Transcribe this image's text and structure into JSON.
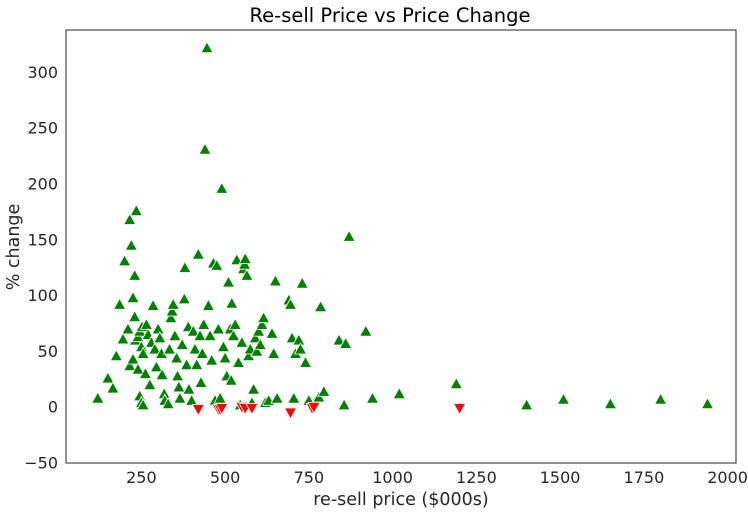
{
  "chart_data": {
    "type": "scatter",
    "title": "Re-sell Price vs Price Change",
    "xlabel": "re-sell price ($000s)",
    "ylabel": "% change",
    "xlim": [
      25,
      2025
    ],
    "ylim": [
      -50,
      338
    ],
    "xticks": [
      250,
      500,
      750,
      1000,
      1250,
      1500,
      1750,
      2000
    ],
    "yticks": [
      -50,
      0,
      50,
      100,
      150,
      200,
      250,
      300
    ],
    "grid": false,
    "legend": "none",
    "series": [
      {
        "marker": "triangle-up",
        "color": "#008000",
        "points": [
          [
            120,
            8
          ],
          [
            150,
            26
          ],
          [
            165,
            17
          ],
          [
            175,
            46
          ],
          [
            185,
            92
          ],
          [
            195,
            61
          ],
          [
            200,
            131
          ],
          [
            210,
            70
          ],
          [
            215,
            168
          ],
          [
            220,
            145
          ],
          [
            230,
            118
          ],
          [
            235,
            176
          ],
          [
            230,
            81
          ],
          [
            225,
            98
          ],
          [
            215,
            37
          ],
          [
            225,
            43
          ],
          [
            232,
            60
          ],
          [
            240,
            63
          ],
          [
            245,
            68
          ],
          [
            252,
            72
          ],
          [
            250,
            54
          ],
          [
            255,
            48
          ],
          [
            240,
            34
          ],
          [
            245,
            10
          ],
          [
            250,
            4
          ],
          [
            255,
            2
          ],
          [
            262,
            30
          ],
          [
            265,
            74
          ],
          [
            270,
            65
          ],
          [
            275,
            20
          ],
          [
            280,
            58
          ],
          [
            285,
            91
          ],
          [
            290,
            52
          ],
          [
            295,
            36
          ],
          [
            300,
            70
          ],
          [
            305,
            62
          ],
          [
            310,
            48
          ],
          [
            312,
            29
          ],
          [
            318,
            12
          ],
          [
            320,
            6
          ],
          [
            330,
            3
          ],
          [
            334,
            52
          ],
          [
            338,
            80
          ],
          [
            342,
            86
          ],
          [
            345,
            92
          ],
          [
            350,
            64
          ],
          [
            355,
            44
          ],
          [
            358,
            28
          ],
          [
            362,
            18
          ],
          [
            365,
            8
          ],
          [
            372,
            56
          ],
          [
            378,
            97
          ],
          [
            380,
            125
          ],
          [
            385,
            38
          ],
          [
            390,
            72
          ],
          [
            392,
            16
          ],
          [
            400,
            6
          ],
          [
            405,
            68
          ],
          [
            410,
            52
          ],
          [
            415,
            38
          ],
          [
            420,
            137
          ],
          [
            425,
            64
          ],
          [
            428,
            22
          ],
          [
            432,
            48
          ],
          [
            436,
            74
          ],
          [
            440,
            231
          ],
          [
            446,
            322
          ],
          [
            450,
            91
          ],
          [
            455,
            64
          ],
          [
            460,
            42
          ],
          [
            465,
            129
          ],
          [
            470,
            6
          ],
          [
            475,
            127
          ],
          [
            480,
            70
          ],
          [
            485,
            8
          ],
          [
            490,
            196
          ],
          [
            495,
            54
          ],
          [
            500,
            44
          ],
          [
            505,
            28
          ],
          [
            510,
            112
          ],
          [
            515,
            70
          ],
          [
            518,
            24
          ],
          [
            520,
            93
          ],
          [
            525,
            64
          ],
          [
            530,
            74
          ],
          [
            535,
            132
          ],
          [
            540,
            40
          ],
          [
            545,
            2
          ],
          [
            550,
            58
          ],
          [
            555,
            124
          ],
          [
            558,
            128
          ],
          [
            560,
            133
          ],
          [
            565,
            118
          ],
          [
            570,
            46
          ],
          [
            575,
            52
          ],
          [
            580,
            4
          ],
          [
            585,
            16
          ],
          [
            590,
            62
          ],
          [
            595,
            50
          ],
          [
            600,
            68
          ],
          [
            605,
            56
          ],
          [
            610,
            74
          ],
          [
            615,
            80
          ],
          [
            620,
            4
          ],
          [
            630,
            6
          ],
          [
            640,
            66
          ],
          [
            645,
            48
          ],
          [
            650,
            113
          ],
          [
            655,
            8
          ],
          [
            690,
            96
          ],
          [
            695,
            92
          ],
          [
            700,
            62
          ],
          [
            705,
            8
          ],
          [
            710,
            48
          ],
          [
            720,
            60
          ],
          [
            725,
            52
          ],
          [
            730,
            111
          ],
          [
            740,
            40
          ],
          [
            750,
            6
          ],
          [
            780,
            9
          ],
          [
            785,
            90
          ],
          [
            795,
            14
          ],
          [
            840,
            60
          ],
          [
            855,
            2
          ],
          [
            860,
            57
          ],
          [
            870,
            153
          ],
          [
            920,
            68
          ],
          [
            940,
            8
          ],
          [
            1020,
            12
          ],
          [
            1190,
            21
          ],
          [
            1400,
            2
          ],
          [
            1510,
            7
          ],
          [
            1650,
            3
          ],
          [
            1800,
            7
          ],
          [
            1940,
            3
          ]
        ]
      },
      {
        "marker": "triangle-down",
        "color": "#ff0000",
        "points": [
          [
            420,
            -2
          ],
          [
            480,
            -2
          ],
          [
            485,
            -2
          ],
          [
            490,
            -1
          ],
          [
            550,
            0
          ],
          [
            560,
            -1
          ],
          [
            580,
            -1
          ],
          [
            695,
            -5
          ],
          [
            760,
            -1
          ],
          [
            765,
            0
          ],
          [
            1200,
            -1
          ]
        ]
      }
    ]
  }
}
